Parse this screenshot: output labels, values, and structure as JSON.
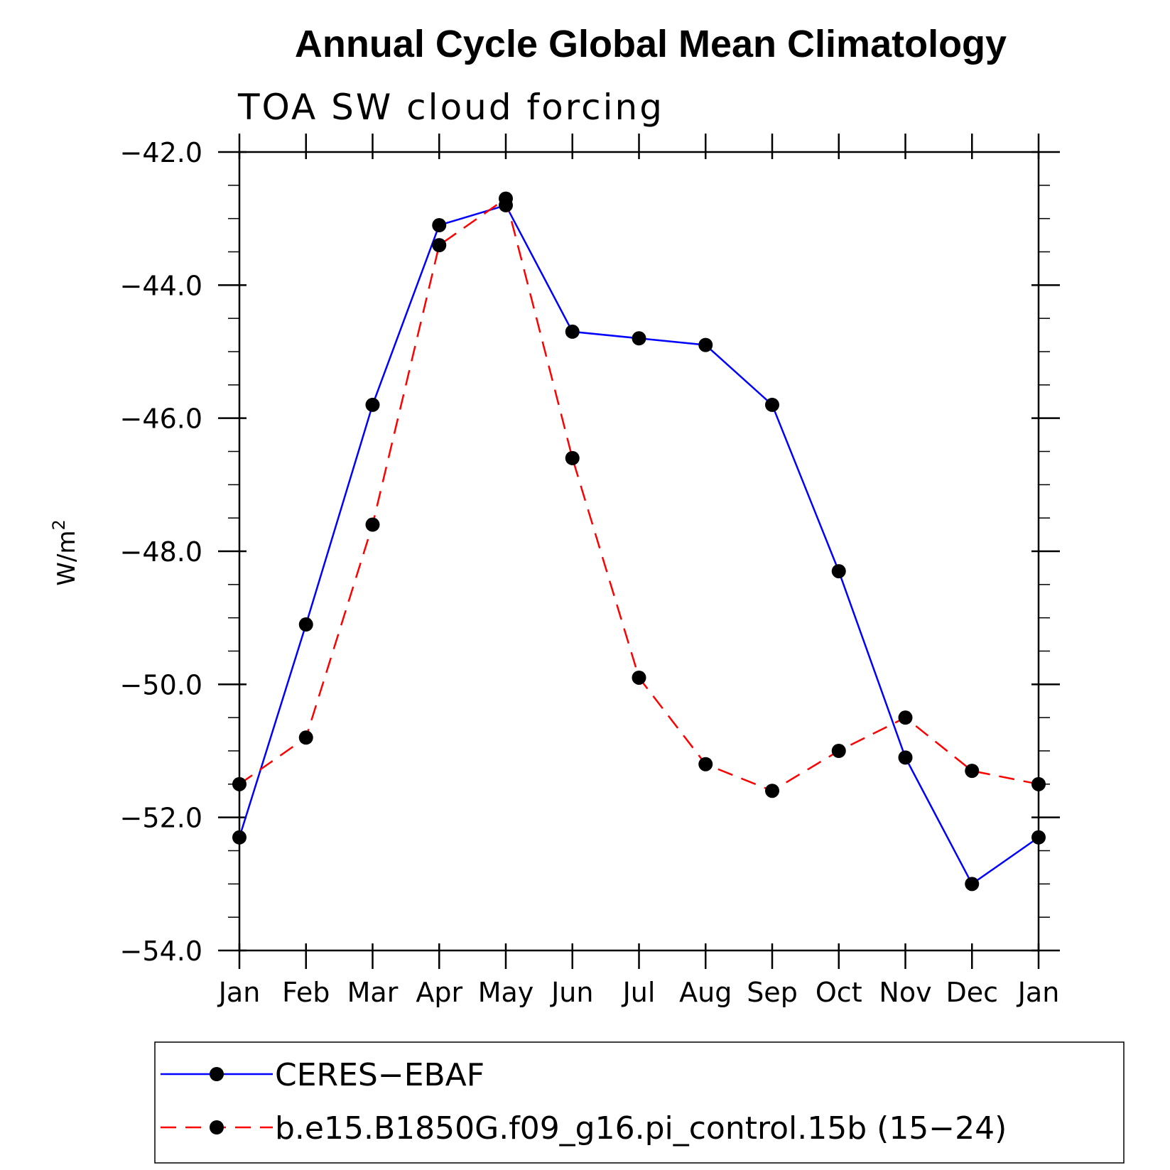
{
  "chart_data": {
    "type": "line",
    "title": "Annual Cycle Global Mean Climatology",
    "subtitle": "TOA SW cloud forcing",
    "xlabel": "",
    "ylabel": "W/m",
    "ylabel_superscript": "2",
    "categories": [
      "Jan",
      "Feb",
      "Mar",
      "Apr",
      "May",
      "Jun",
      "Jul",
      "Aug",
      "Sep",
      "Oct",
      "Nov",
      "Dec",
      "Jan"
    ],
    "ylim": [
      -54.0,
      -42.0
    ],
    "yticks": [
      "-42.0",
      "-44.0",
      "-46.0",
      "-48.0",
      "-50.0",
      "-52.0",
      "-54.0"
    ],
    "ytick_values": [
      -42,
      -44,
      -46,
      -48,
      -50,
      -52,
      -54
    ],
    "grid": false,
    "legend_position": "bottom",
    "series": [
      {
        "name": "CERES−EBAF",
        "color": "#0000ff",
        "dash": "solid",
        "values": [
          -52.3,
          -49.1,
          -45.8,
          -43.1,
          -42.8,
          -44.7,
          -44.8,
          -44.9,
          -45.8,
          -48.3,
          -51.1,
          -53.0,
          -52.3
        ]
      },
      {
        "name": "b.e15.B1850G.f09_g16.pi_control.15b (15−24)",
        "color": "#ff0000",
        "dash": "dashed",
        "values": [
          -51.5,
          -50.8,
          -47.6,
          -43.4,
          -42.7,
          -46.6,
          -49.9,
          -51.2,
          -51.6,
          -51.0,
          -50.5,
          -51.3,
          -51.5
        ]
      }
    ]
  }
}
